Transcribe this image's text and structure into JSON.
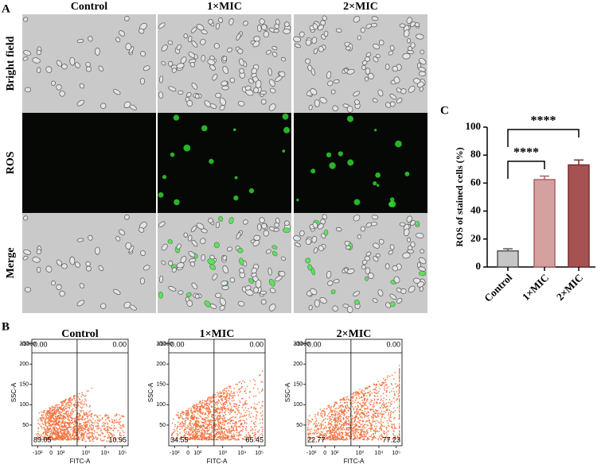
{
  "panel_a": {
    "label": "A",
    "columns": [
      "Control",
      "1×MIC",
      "2×MIC"
    ],
    "rows": [
      "Bright field",
      "ROS",
      "Merge"
    ]
  },
  "panel_b": {
    "label": "B",
    "x_label": "FITC-A",
    "y_label": "SSC-A",
    "y_unit": "x1000",
    "yticks": [
      "50",
      "100",
      "150",
      "200",
      "250"
    ],
    "xticks": [
      "-10²",
      "0",
      "10²",
      "10³",
      "10⁴",
      "10⁵"
    ],
    "plots": [
      {
        "title": "Control",
        "upper_left": "0.00",
        "upper_right": "0.00",
        "lower_left": "89.05",
        "lower_right": "10.95"
      },
      {
        "title": "1×MIC",
        "upper_left": "0.00",
        "upper_right": "0.00",
        "lower_left": "34.55",
        "lower_right": "65.45"
      },
      {
        "title": "2×MIC",
        "upper_left": "0.00",
        "upper_right": "0.00",
        "lower_left": "22.77",
        "lower_right": "77.23"
      }
    ]
  },
  "chart_data": {
    "type": "bar",
    "panel_label": "C",
    "y_label": "ROS of stained cells (%)",
    "categories": [
      "Control",
      "1×MIC",
      "2×MIC"
    ],
    "values": [
      11.5,
      62.5,
      73
    ],
    "errors": [
      1.5,
      2.5,
      3.5
    ],
    "colors": [
      "#c6c6c6",
      "#d4a0a0",
      "#a65252"
    ],
    "edge_colors": [
      "#555555",
      "#a86464",
      "#7a2e2e"
    ],
    "ylim": [
      0,
      100
    ],
    "yticks": [
      0,
      20,
      40,
      60,
      80,
      100
    ],
    "annotations": [
      "****",
      "****"
    ]
  }
}
